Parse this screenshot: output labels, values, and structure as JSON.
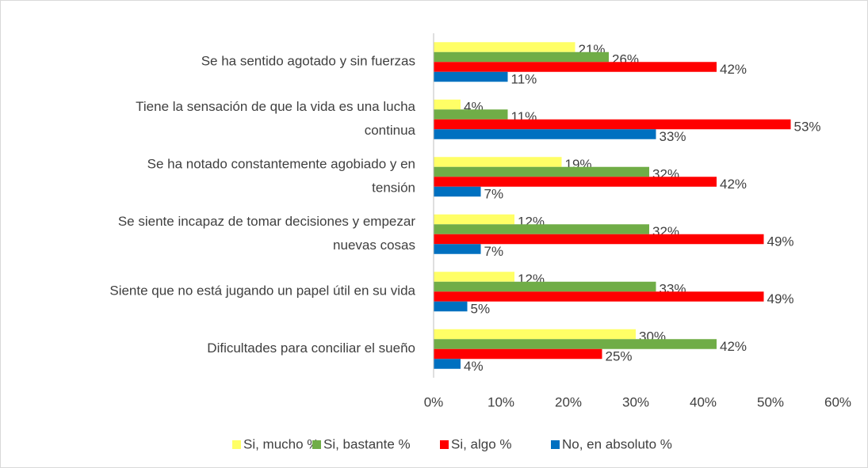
{
  "chart_data": {
    "type": "hbar",
    "categories": [
      [
        "Se ha sentido agotado y sin fuerzas"
      ],
      [
        "Tiene la sensación de que la vida es una lucha",
        "continua"
      ],
      [
        "Se ha notado constantemente agobiado y en",
        "tensión"
      ],
      [
        "Se siente incapaz de tomar decisiones y empezar",
        "nuevas cosas"
      ],
      [
        "Siente que no está jugando un papel útil en su vida"
      ],
      [
        "Dificultades para conciliar el sueño"
      ]
    ],
    "series": [
      {
        "name": "Si, mucho %",
        "color": "#ffff66",
        "values": [
          21,
          4,
          19,
          12,
          12,
          30
        ],
        "value_labels": [
          "21%",
          "4%",
          "19%",
          "12%",
          "12%",
          "30%"
        ]
      },
      {
        "name": "Si, bastante %",
        "color": "#70ad47",
        "values": [
          26,
          11,
          32,
          32,
          33,
          42
        ],
        "value_labels": [
          "26%",
          "11%",
          "32%",
          "32%",
          "33%",
          "42%"
        ]
      },
      {
        "name": "Si, algo %",
        "color": "#ff0000",
        "values": [
          42,
          53,
          42,
          49,
          49,
          25
        ],
        "value_labels": [
          "42%",
          "53%",
          "42%",
          "49%",
          "49%",
          "25%"
        ]
      },
      {
        "name": "No, en absoluto %",
        "color": "#0070c0",
        "values": [
          11,
          33,
          7,
          7,
          5,
          4
        ],
        "value_labels": [
          "11%",
          "33%",
          "7%",
          "7%",
          "5%",
          "4%"
        ]
      }
    ],
    "xlim": [
      0,
      60
    ],
    "xticks": [
      {
        "value": 0,
        "label": "0%"
      },
      {
        "value": 10,
        "label": "10%"
      },
      {
        "value": 20,
        "label": "20%"
      },
      {
        "value": 30,
        "label": "30%"
      },
      {
        "value": 40,
        "label": "40%"
      },
      {
        "value": 50,
        "label": "50%"
      },
      {
        "value": 60,
        "label": "60%"
      }
    ],
    "grid": false,
    "legend": "bottom"
  }
}
